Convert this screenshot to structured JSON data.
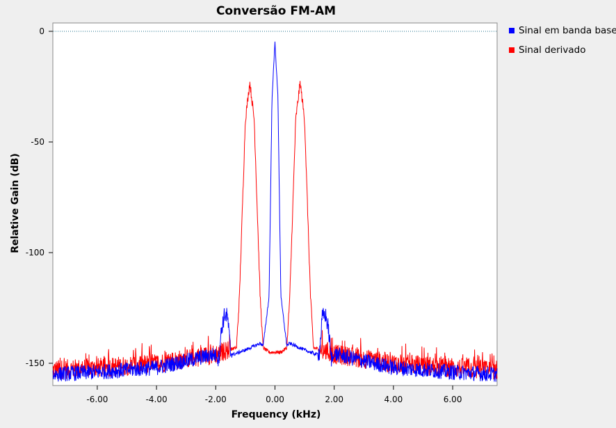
{
  "chart_data": {
    "type": "line",
    "title": "Conversão FM-AM",
    "xlabel": "Frequency (kHz)",
    "ylabel": "Relative Gain (dB)",
    "xlim": [
      -7.5,
      7.5
    ],
    "ylim": [
      -160,
      0
    ],
    "x_ticks": [
      -6,
      -4,
      -2,
      0,
      2,
      4,
      6
    ],
    "x_tick_labels": [
      "-6.00",
      "-4.00",
      "-2.00",
      "0.00",
      "2.00",
      "4.00",
      "6.00"
    ],
    "y_ticks": [
      0,
      -50,
      -100,
      -150
    ],
    "y_tick_labels": [
      "0",
      "-50",
      "-100",
      "-150"
    ],
    "reference_line": 0,
    "legend_position": "right",
    "series": [
      {
        "name": "Sinal em banda base",
        "color": "#0000ff",
        "noise_floor_points": [
          [
            -7.5,
            -155
          ],
          [
            -6,
            -154
          ],
          [
            -4,
            -152
          ],
          [
            -3,
            -149
          ],
          [
            -2.05,
            -146
          ]
        ],
        "peaks": [
          {
            "x": 0.0,
            "y": -5
          },
          {
            "x": -1.65,
            "y": -131
          },
          {
            "x": 1.65,
            "y": -131
          }
        ],
        "points": [
          [
            -7.5,
            -155
          ],
          [
            -6,
            -154
          ],
          [
            -4,
            -152
          ],
          [
            -2.05,
            -146
          ],
          [
            -1.9,
            -148
          ],
          [
            -1.8,
            -134
          ],
          [
            -1.7,
            -128
          ],
          [
            -1.6,
            -129
          ],
          [
            -1.5,
            -145
          ],
          [
            -1.4,
            -146
          ],
          [
            -1.0,
            -144
          ],
          [
            -0.5,
            -141
          ],
          [
            -0.4,
            -142
          ],
          [
            -0.2,
            -120
          ],
          [
            -0.1,
            -30
          ],
          [
            0.0,
            -5
          ],
          [
            0.1,
            -30
          ],
          [
            0.2,
            -120
          ],
          [
            0.4,
            -142
          ],
          [
            0.5,
            -141
          ],
          [
            1.0,
            -144
          ],
          [
            1.4,
            -146
          ],
          [
            1.5,
            -145
          ],
          [
            1.6,
            -129
          ],
          [
            1.7,
            -128
          ],
          [
            1.8,
            -134
          ],
          [
            1.9,
            -148
          ],
          [
            2.05,
            -146
          ],
          [
            4,
            -152
          ],
          [
            6,
            -154
          ],
          [
            7.5,
            -155
          ]
        ]
      },
      {
        "name": "Sinal derivado",
        "color": "#ff0000",
        "points": [
          [
            -7.5,
            -153
          ],
          [
            -6,
            -152
          ],
          [
            -4,
            -150
          ],
          [
            -2.05,
            -146
          ],
          [
            -1.6,
            -144
          ],
          [
            -1.3,
            -143
          ],
          [
            -1.2,
            -120
          ],
          [
            -1.0,
            -40
          ],
          [
            -0.85,
            -23
          ],
          [
            -0.7,
            -40
          ],
          [
            -0.5,
            -120
          ],
          [
            -0.4,
            -143
          ],
          [
            -0.2,
            -145
          ],
          [
            0.0,
            -145
          ],
          [
            0.2,
            -145
          ],
          [
            0.4,
            -143
          ],
          [
            0.5,
            -120
          ],
          [
            0.7,
            -40
          ],
          [
            0.85,
            -23
          ],
          [
            1.0,
            -40
          ],
          [
            1.2,
            -120
          ],
          [
            1.3,
            -143
          ],
          [
            1.6,
            -144
          ],
          [
            2.05,
            -146
          ],
          [
            4,
            -150
          ],
          [
            6,
            -152
          ],
          [
            7.5,
            -153
          ]
        ]
      }
    ]
  }
}
